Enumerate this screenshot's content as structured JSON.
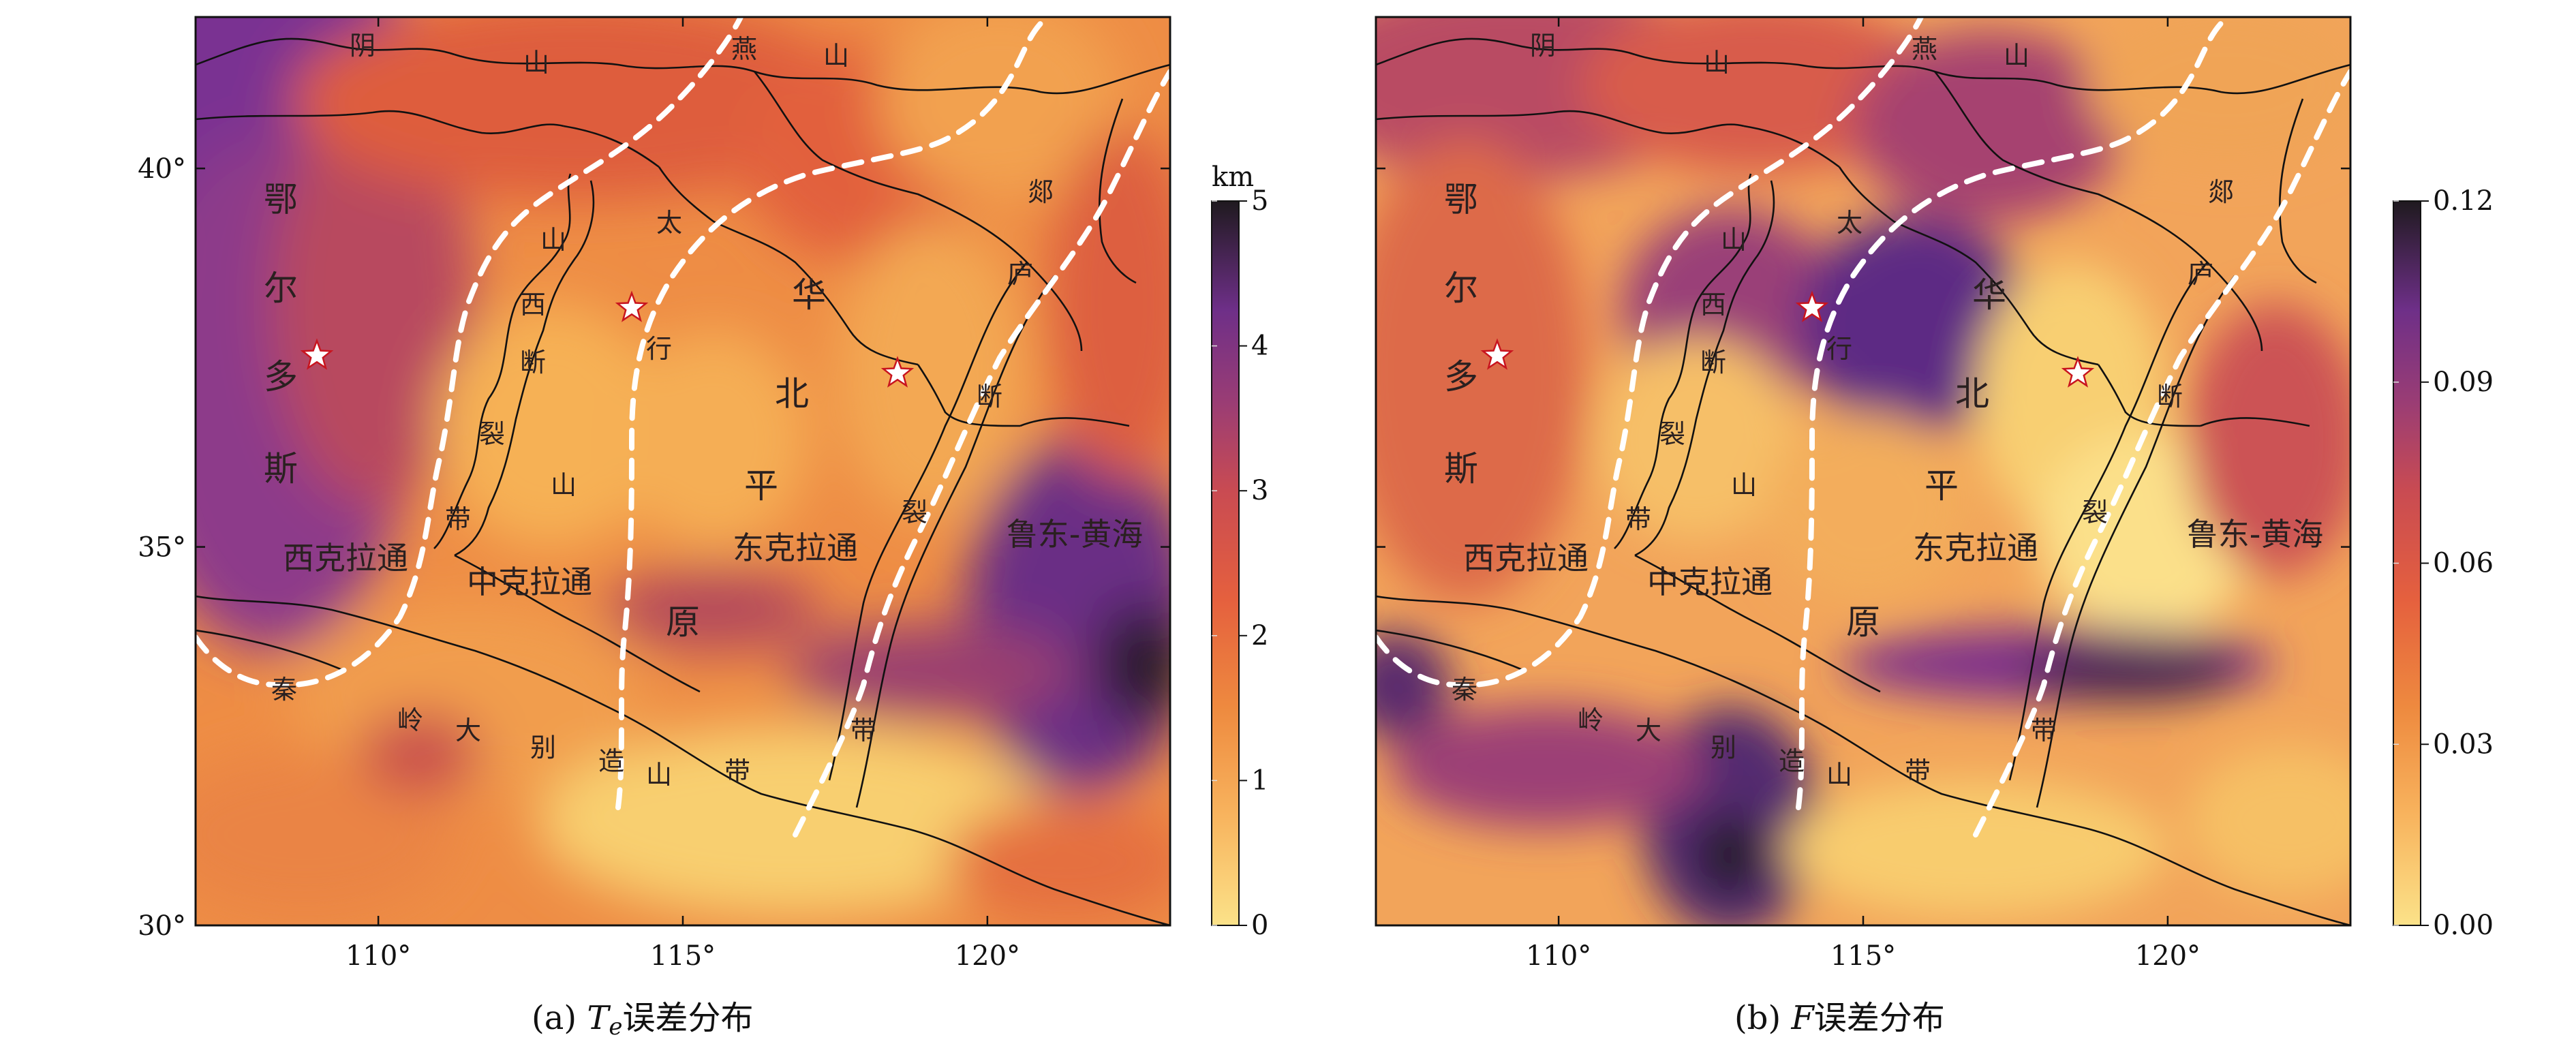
{
  "panels": [
    {
      "caption_prefix": "(a) ",
      "caption_var": "T",
      "caption_sub": "e",
      "caption_suffix": "误差分布",
      "colorbar": {
        "unit": "km",
        "ticks": [
          "0",
          "1",
          "2",
          "3",
          "4",
          "5"
        ]
      },
      "field": "te_error"
    },
    {
      "caption_prefix": "(b) ",
      "caption_var": "F",
      "caption_sub": "",
      "caption_suffix": "误差分布",
      "colorbar": {
        "unit": "",
        "ticks": [
          "0.00",
          "0.03",
          "0.06",
          "0.09",
          "0.12"
        ]
      },
      "field": "f_error"
    }
  ],
  "axes": {
    "x_ticks": [
      "110°",
      "115°",
      "120°"
    ],
    "y_ticks": [
      "40°",
      "35°",
      "30°"
    ],
    "lon_range": [
      107,
      123
    ],
    "lat_range": [
      30,
      42
    ]
  },
  "colormap": [
    "#fbe289",
    "#f8b45e",
    "#ee8a3f",
    "#e5603e",
    "#c94b52",
    "#9b3d74",
    "#6e2f88",
    "#2b1c2f"
  ],
  "labels": {
    "yinshan": [
      "阴",
      "山"
    ],
    "yanshan": [
      "燕",
      "山"
    ],
    "ordos": [
      "鄂",
      "尔",
      "多",
      "斯"
    ],
    "west_craton": "西克拉通",
    "central_craton": "中克拉通",
    "east_craton": "东克拉通",
    "ludong": "鲁东-黄海",
    "shanxi_rift": [
      "山",
      "西",
      "断",
      "裂",
      "带"
    ],
    "taihang": [
      "太",
      "行",
      "山"
    ],
    "huabei": [
      "华",
      "北",
      "平",
      "原"
    ],
    "tanlu": [
      "郯",
      "庐",
      "断",
      "裂",
      "带"
    ],
    "qinling": [
      "秦",
      "岭",
      "大",
      "别",
      "造",
      "山",
      "带"
    ]
  }
}
